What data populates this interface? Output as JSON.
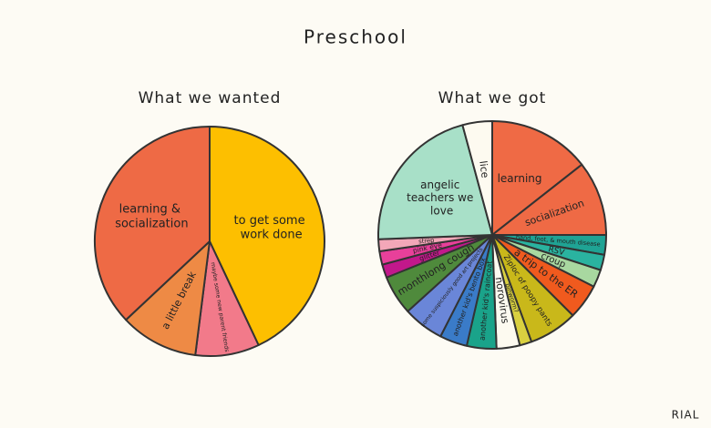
{
  "title": "Preschool",
  "credit": "RIAL",
  "chart_data": [
    {
      "type": "pie",
      "title": "What we wanted",
      "categories": [
        "to get some work done",
        "maybe some new parent friends",
        "a little break",
        "learning & socialization"
      ],
      "values": [
        43,
        9,
        11,
        37
      ],
      "colors": [
        "#fdbf00",
        "#f27a8a",
        "#ee8a45",
        "#ee6a45"
      ]
    },
    {
      "type": "pie",
      "title": "What we got",
      "categories": [
        "learning",
        "socialization",
        "hand, foot, & mouth disease",
        "RSV",
        "croup",
        "a trip to the ER",
        "Ziploc of poopy pants",
        "pinworm?",
        "norovirus",
        "another kid's raincoat",
        "another kid's bento box",
        "some suspiciously good art projects",
        "monthlong cough",
        "glitter",
        "pink eye",
        "strep",
        "angelic teachers we love",
        "lice"
      ],
      "values": [
        14.4,
        10.6,
        2.8,
        2.2,
        2.5,
        5,
        6.9,
        1.7,
        3.3,
        4.2,
        3.9,
        5.8,
        5.6,
        1.9,
        1.9,
        1.7,
        21.4,
        4.2
      ],
      "colors": [
        "#ef6a45",
        "#ef6a45",
        "#1fa394",
        "#2ab3a0",
        "#a8d8a0",
        "#f05a1e",
        "#c9b81a",
        "#d9d040",
        "#fdfaf0",
        "#1aa38a",
        "#3a7bc8",
        "#6a86d8",
        "#4f8a3c",
        "#c2188b",
        "#e8409a",
        "#f3a7b8",
        "#a8e0c8",
        "#fdfaf0"
      ]
    }
  ]
}
